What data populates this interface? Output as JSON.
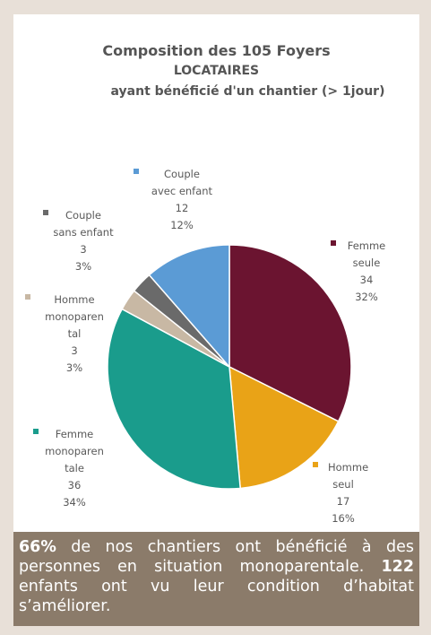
{
  "chart_data": {
    "type": "pie",
    "title": [
      "Composition des 105 Foyers",
      "LOCATAIRES",
      "ayant bénéficié d'un chantier (> 1jour)"
    ],
    "slices": [
      {
        "name": [
          "Femme",
          "seule"
        ],
        "value": 34,
        "percent": "32%",
        "color": "#6b1430"
      },
      {
        "name": [
          "Homme",
          "seul"
        ],
        "value": 17,
        "percent": "16%",
        "color": "#e9a317"
      },
      {
        "name": [
          "Femme",
          "monoparen",
          "tale"
        ],
        "value": 36,
        "percent": "34%",
        "color": "#1a9c8c"
      },
      {
        "name": [
          "Homme",
          "monoparen",
          "tal"
        ],
        "value": 3,
        "percent": "3%",
        "color": "#c8b8a4"
      },
      {
        "name": [
          "Couple",
          "sans enfant"
        ],
        "value": 3,
        "percent": "3%",
        "color": "#6a6a6a"
      },
      {
        "name": [
          "Couple",
          "avec enfant"
        ],
        "value": 12,
        "percent": "12%",
        "color": "#5b9bd5"
      }
    ]
  },
  "caption": {
    "pct": "66%",
    "part1": " de nos chantiers ont bénéficié à des personnes en situation monoparentale. ",
    "count": "122",
    "part2": " enfants ont vu leur condition d’habitat s’améliorer."
  }
}
